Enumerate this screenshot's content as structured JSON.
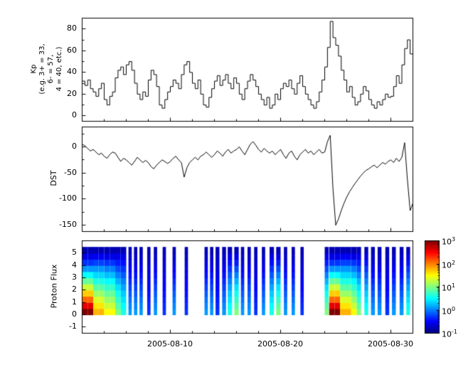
{
  "x_axis": {
    "range": [
      2,
      32
    ],
    "ticks": [
      10,
      20,
      30
    ],
    "labels": [
      "2005-08-10",
      "2005-08-20",
      "2005-08-30"
    ],
    "minor_days": [
      4,
      6,
      8,
      12,
      14,
      16,
      18,
      22,
      24,
      26,
      28
    ]
  },
  "colors": {
    "line": "#000000",
    "axis": "#000000",
    "background": "#ffffff"
  },
  "chart_data": [
    {
      "type": "line",
      "name": "kp-index",
      "ylabel": "Kp (e.g. 3+ = 33, 6- = 57, 4 = 40, etc.)",
      "ylabel_lines": [
        "Kp",
        "(e.g. 3+ = 33,",
        "6- = 57,",
        "4 = 40, etc.)"
      ],
      "step": true,
      "x0": 2,
      "dt": 0.25,
      "xlim": [
        2,
        32
      ],
      "ylim": [
        -5,
        90
      ],
      "yticks": [
        0,
        20,
        40,
        60,
        80
      ],
      "yticks_minor": [
        10,
        30,
        50,
        70
      ],
      "values": [
        32,
        28,
        33,
        25,
        22,
        18,
        25,
        30,
        15,
        10,
        18,
        22,
        35,
        42,
        45,
        38,
        47,
        50,
        42,
        30,
        20,
        15,
        22,
        18,
        33,
        42,
        38,
        27,
        10,
        7,
        15,
        22,
        27,
        33,
        30,
        25,
        38,
        47,
        50,
        40,
        30,
        25,
        33,
        20,
        10,
        8,
        17,
        25,
        32,
        37,
        28,
        33,
        38,
        30,
        25,
        35,
        30,
        20,
        15,
        25,
        32,
        38,
        33,
        27,
        20,
        15,
        10,
        17,
        7,
        10,
        20,
        15,
        25,
        30,
        27,
        33,
        25,
        20,
        30,
        37,
        27,
        20,
        15,
        10,
        7,
        13,
        22,
        33,
        45,
        63,
        87,
        72,
        65,
        55,
        42,
        33,
        22,
        27,
        17,
        10,
        13,
        20,
        27,
        23,
        15,
        10,
        7,
        13,
        10,
        15,
        20,
        17,
        18,
        27,
        37,
        30,
        47,
        62,
        70,
        57,
        40
      ]
    },
    {
      "type": "line",
      "name": "dst-index",
      "ylabel": "DST",
      "step": false,
      "x0": 2,
      "dt": 0.25,
      "xlim": [
        2,
        32
      ],
      "ylim": [
        -162,
        38
      ],
      "yticks": [
        0,
        -50,
        -100,
        -150
      ],
      "yticks_minor": [
        25,
        -25,
        -75,
        -125
      ],
      "values": [
        5,
        2,
        -3,
        -8,
        -5,
        -10,
        -15,
        -12,
        -18,
        -22,
        -15,
        -10,
        -12,
        -20,
        -28,
        -22,
        -25,
        -30,
        -35,
        -28,
        -20,
        -25,
        -30,
        -26,
        -30,
        -38,
        -42,
        -35,
        -30,
        -25,
        -28,
        -32,
        -28,
        -22,
        -18,
        -25,
        -30,
        -58,
        -40,
        -30,
        -25,
        -20,
        -25,
        -18,
        -15,
        -10,
        -15,
        -20,
        -15,
        -8,
        -12,
        -18,
        -10,
        -5,
        -12,
        -8,
        -5,
        0,
        -8,
        -15,
        -5,
        5,
        10,
        3,
        -5,
        -10,
        -3,
        -8,
        -12,
        -8,
        -15,
        -10,
        -5,
        -15,
        -22,
        -12,
        -8,
        -18,
        -25,
        -15,
        -10,
        -5,
        -12,
        -8,
        -15,
        -10,
        -5,
        -12,
        -10,
        10,
        22,
        -80,
        -150,
        -138,
        -122,
        -108,
        -96,
        -86,
        -78,
        -70,
        -63,
        -56,
        -50,
        -45,
        -42,
        -38,
        -35,
        -40,
        -35,
        -30,
        -33,
        -28,
        -25,
        -30,
        -22,
        -28,
        -20,
        8,
        -62,
        -122,
        -108
      ]
    },
    {
      "type": "heatmap",
      "name": "proton-flux",
      "ylabel": "Proton Flux",
      "xlim": [
        2,
        32
      ],
      "ylim": [
        -1.5,
        6
      ],
      "yticks": [
        -1,
        0,
        1,
        2,
        3,
        4,
        5
      ],
      "yticks_minor": [],
      "row_y0": 0,
      "row_dy": 0.5,
      "vmin": -1,
      "vmax": 3,
      "colormap": "jet",
      "profiles": {
        "red": [
          3.0,
          2.6,
          2.1,
          1.7,
          1.3,
          0.9,
          0.5,
          0.1,
          -0.3,
          -0.6,
          -0.8
        ],
        "yel": [
          1.8,
          1.6,
          1.35,
          1.1,
          0.85,
          0.6,
          0.35,
          0.1,
          -0.25,
          -0.55,
          -0.8
        ],
        "yel2": [
          1.5,
          1.3,
          1.1,
          0.9,
          0.7,
          0.5,
          0.25,
          0.0,
          -0.3,
          -0.6,
          -0.8
        ],
        "grn": [
          1.0,
          0.85,
          0.7,
          0.55,
          0.4,
          0.2,
          0.0,
          -0.2,
          -0.4,
          -0.6,
          -0.8
        ],
        "cyn": [
          0.6,
          0.5,
          0.4,
          0.3,
          0.15,
          0.0,
          -0.15,
          -0.3,
          -0.45,
          -0.6,
          -0.8
        ],
        "blu": [
          0.1,
          0.02,
          -0.06,
          -0.15,
          -0.25,
          -0.35,
          -0.45,
          -0.55,
          -0.65,
          -0.72,
          -0.8
        ],
        "blu2": [
          -0.3,
          -0.35,
          -0.4,
          -0.45,
          -0.5,
          -0.55,
          -0.6,
          -0.65,
          -0.7,
          -0.75,
          -0.8
        ]
      },
      "columns": [
        {
          "x": 2.0,
          "w": 0.5,
          "p": "red"
        },
        {
          "x": 2.5,
          "w": 0.5,
          "p": "red"
        },
        {
          "x": 3.0,
          "w": 0.5,
          "p": "yel"
        },
        {
          "x": 3.5,
          "w": 0.5,
          "p": "yel"
        },
        {
          "x": 4.0,
          "w": 0.5,
          "p": "yel2"
        },
        {
          "x": 4.5,
          "w": 0.5,
          "p": "yel2"
        },
        {
          "x": 5.0,
          "w": 0.5,
          "p": "grn"
        },
        {
          "x": 5.5,
          "w": 0.5,
          "p": "cyn"
        },
        {
          "x": 6.2,
          "w": 0.3,
          "p": "blu"
        },
        {
          "x": 6.7,
          "w": 0.3,
          "p": "blu"
        },
        {
          "x": 7.2,
          "w": 0.3,
          "p": "blu"
        },
        {
          "x": 7.9,
          "w": 0.3,
          "p": "blu2"
        },
        {
          "x": 8.5,
          "w": 0.3,
          "p": "blu"
        },
        {
          "x": 9.3,
          "w": 0.3,
          "p": "blu2"
        },
        {
          "x": 10.2,
          "w": 0.3,
          "p": "blu"
        },
        {
          "x": 11.3,
          "w": 0.3,
          "p": "blu2"
        },
        {
          "x": 13.1,
          "w": 0.3,
          "p": "blu"
        },
        {
          "x": 13.6,
          "w": 0.3,
          "p": "blu"
        },
        {
          "x": 14.1,
          "w": 0.35,
          "p": "blu2"
        },
        {
          "x": 14.7,
          "w": 0.35,
          "p": "blu"
        },
        {
          "x": 15.2,
          "w": 0.4,
          "p": "cyn"
        },
        {
          "x": 15.8,
          "w": 0.4,
          "p": "grn"
        },
        {
          "x": 16.4,
          "w": 0.3,
          "p": "blu"
        },
        {
          "x": 17.0,
          "w": 0.3,
          "p": "blu"
        },
        {
          "x": 17.6,
          "w": 0.3,
          "p": "blu2"
        },
        {
          "x": 18.3,
          "w": 0.3,
          "p": "blu"
        },
        {
          "x": 19.0,
          "w": 0.4,
          "p": "cyn"
        },
        {
          "x": 19.6,
          "w": 0.4,
          "p": "grn"
        },
        {
          "x": 20.3,
          "w": 0.3,
          "p": "blu"
        },
        {
          "x": 21.0,
          "w": 0.3,
          "p": "blu"
        },
        {
          "x": 21.8,
          "w": 0.3,
          "p": "blu2"
        },
        {
          "x": 24.0,
          "w": 0.35,
          "p": "grn"
        },
        {
          "x": 24.4,
          "w": 0.5,
          "p": "red"
        },
        {
          "x": 24.9,
          "w": 0.5,
          "p": "red"
        },
        {
          "x": 25.4,
          "w": 0.5,
          "p": "yel"
        },
        {
          "x": 25.9,
          "w": 0.5,
          "p": "yel"
        },
        {
          "x": 26.4,
          "w": 0.5,
          "p": "yel2"
        },
        {
          "x": 26.9,
          "w": 0.4,
          "p": "grn"
        },
        {
          "x": 27.6,
          "w": 0.35,
          "p": "cyn"
        },
        {
          "x": 28.2,
          "w": 0.35,
          "p": "blu"
        },
        {
          "x": 28.8,
          "w": 0.35,
          "p": "blu"
        },
        {
          "x": 29.5,
          "w": 0.35,
          "p": "blu2"
        },
        {
          "x": 30.1,
          "w": 0.35,
          "p": "blu"
        },
        {
          "x": 30.8,
          "w": 0.35,
          "p": "blu"
        },
        {
          "x": 31.4,
          "w": 0.35,
          "p": "cyn"
        }
      ]
    }
  ],
  "colorbar": {
    "vmin": -1,
    "vmax": 3,
    "base": "10",
    "ticks": [
      {
        "exp": "3",
        "v": 3
      },
      {
        "exp": "2",
        "v": 2
      },
      {
        "exp": "1",
        "v": 1
      },
      {
        "exp": "0",
        "v": 0
      },
      {
        "exp": "-1",
        "v": -1
      }
    ]
  }
}
